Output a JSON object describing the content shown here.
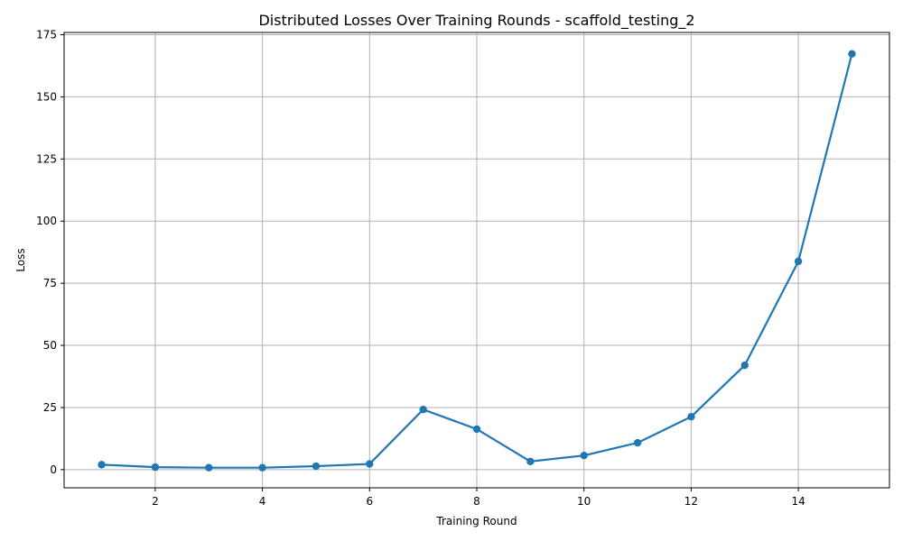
{
  "chart_data": {
    "type": "line",
    "title": "Distributed Losses Over Training Rounds  - scaffold_testing_2",
    "xlabel": "Training Round",
    "ylabel": "Loss",
    "xlim": [
      0.3,
      15.7
    ],
    "ylim": [
      -7.3,
      175.9
    ],
    "xticks": [
      2,
      4,
      6,
      8,
      10,
      12,
      14
    ],
    "yticks": [
      0,
      25,
      50,
      75,
      100,
      125,
      150,
      175
    ],
    "grid": true,
    "series": [
      {
        "color": "#1f77b4",
        "x": [
          1,
          2,
          3,
          4,
          5,
          6,
          7,
          8,
          9,
          10,
          11,
          12,
          13,
          14,
          15
        ],
        "y": [
          2.0,
          1.0,
          0.8,
          0.8,
          1.4,
          2.3,
          24.2,
          16.3,
          3.3,
          5.7,
          10.8,
          21.3,
          42.0,
          83.8,
          167.3
        ]
      }
    ]
  }
}
